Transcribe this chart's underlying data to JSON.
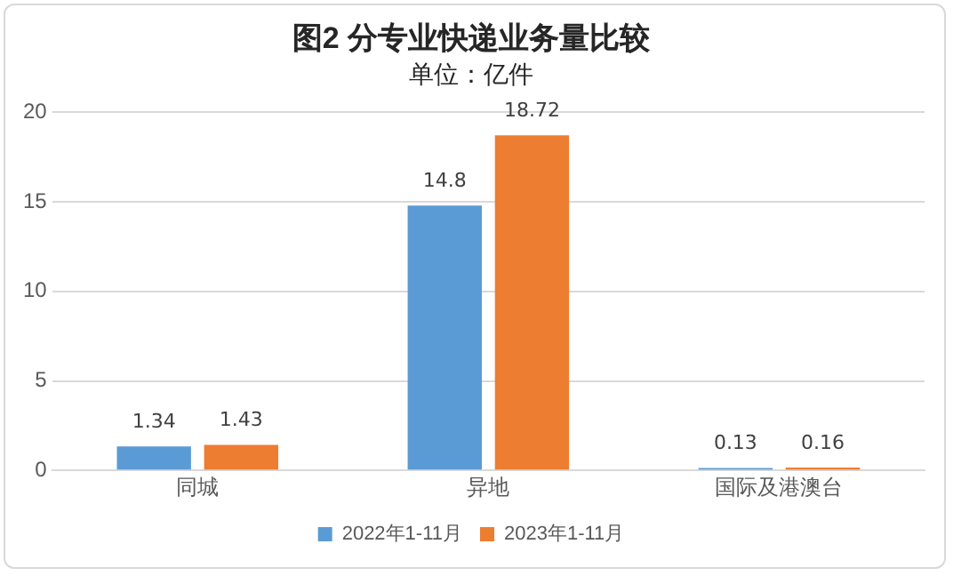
{
  "chart_data": {
    "type": "bar",
    "title": "图2 分专业快递业务量比较",
    "subtitle": "单位：亿件",
    "categories": [
      "同城",
      "异地",
      "国际及港澳台"
    ],
    "series": [
      {
        "name": "2022年1-11月",
        "color": "#5b9bd5",
        "values": [
          1.34,
          14.8,
          0.13
        ]
      },
      {
        "name": "2023年1-11月",
        "color": "#ed7d31",
        "values": [
          1.43,
          18.72,
          0.16
        ]
      }
    ],
    "ylim": [
      0,
      20
    ],
    "yticks": [
      0,
      5,
      10,
      15,
      20
    ],
    "grid": "y",
    "legend": "bottom",
    "data_labels": true
  }
}
